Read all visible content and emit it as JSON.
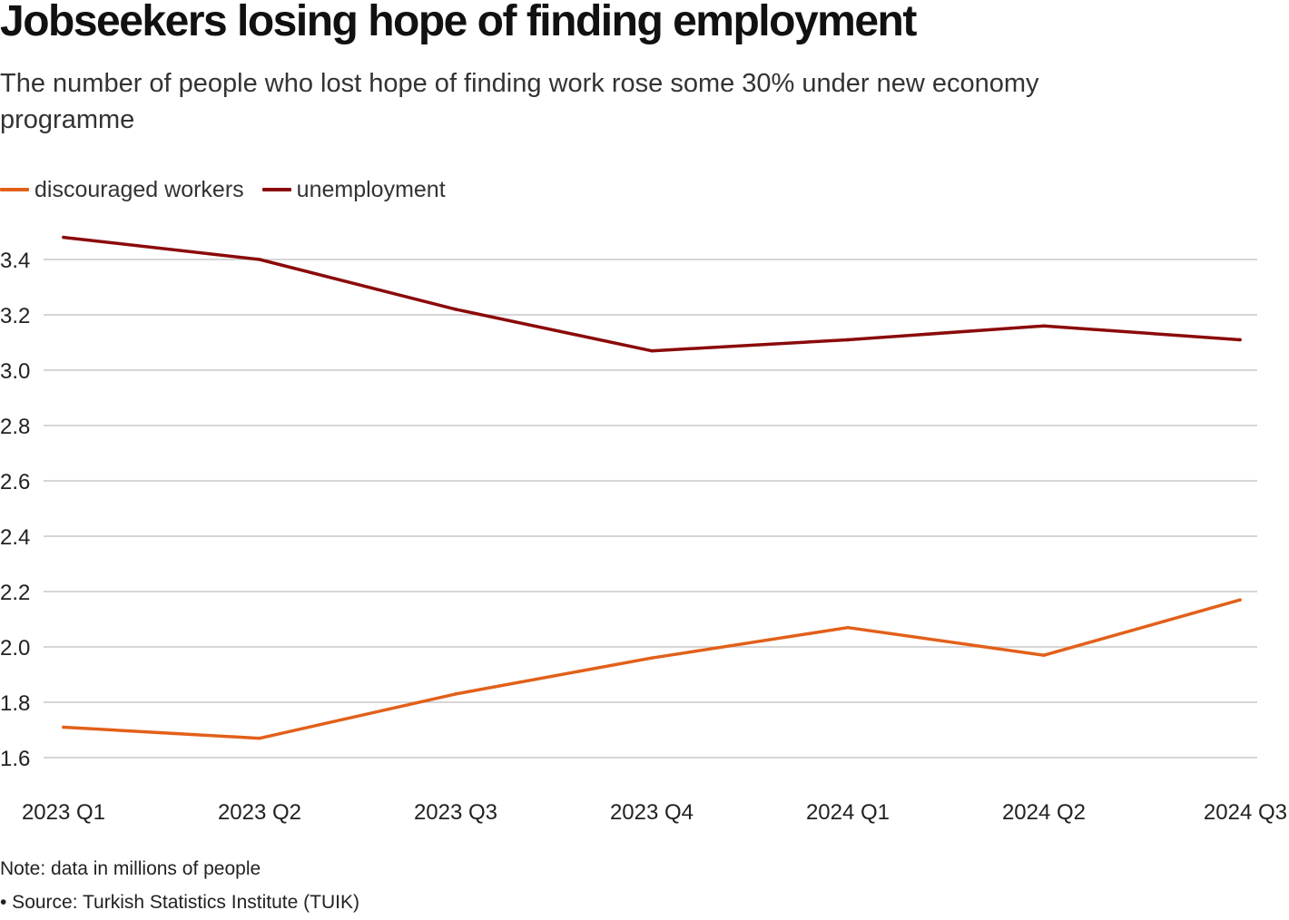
{
  "header": {
    "title": "Jobseekers losing hope of finding employment",
    "subtitle": "The number of people who lost hope of finding work rose some 30% under new economy programme"
  },
  "chart_data": {
    "type": "line",
    "title": "Jobseekers losing hope of finding employment",
    "subtitle": "The number of people who lost hope of finding work rose some 30% under new economy programme",
    "categories": [
      "2023 Q1",
      "2023 Q2",
      "2023 Q3",
      "2023 Q4",
      "2024 Q1",
      "2024 Q2",
      "2024 Q3"
    ],
    "series": [
      {
        "name": "discouraged workers",
        "color": "#e2601a",
        "values": [
          1.71,
          1.67,
          1.83,
          1.96,
          2.07,
          1.97,
          2.17
        ]
      },
      {
        "name": "unemployment",
        "color": "#8b0a0a",
        "values": [
          3.48,
          3.4,
          3.22,
          3.07,
          3.11,
          3.16,
          3.11
        ]
      }
    ],
    "yticks": [
      "1.6",
      "1.8",
      "2.0",
      "2.2",
      "2.4",
      "2.6",
      "2.8",
      "3.0",
      "3.2",
      "3.4"
    ],
    "ylim": [
      1.6,
      3.4
    ],
    "xlabel": "",
    "ylabel": "",
    "grid": true,
    "legend_position": "top-left"
  },
  "footer": {
    "note": "Note: data in millions of people",
    "source": "• Source: Turkish Statistics Institute (TUIK)"
  }
}
